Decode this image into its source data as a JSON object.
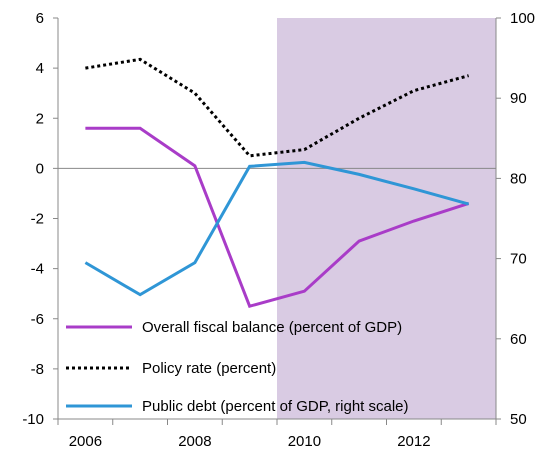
{
  "chart_data": {
    "type": "line",
    "x": [
      2006,
      2007,
      2008,
      2009,
      2010,
      2011,
      2012,
      2013
    ],
    "x_ticks": [
      "2006",
      "2008",
      "2010",
      "2012"
    ],
    "xlim": [
      2005.5,
      2013.5
    ],
    "shaded_region": {
      "from": "2009.5",
      "to": "2013.5",
      "color": "#d9cbe3"
    },
    "left_axis": {
      "ylim": [
        -10,
        6
      ],
      "ticks": [
        "-10",
        "-8",
        "-6",
        "-4",
        "-2",
        "0",
        "2",
        "4",
        "6"
      ]
    },
    "right_axis": {
      "ylim": [
        50,
        100
      ],
      "ticks": [
        "50",
        "60",
        "70",
        "80",
        "90",
        "100"
      ]
    },
    "grid": false,
    "legend_position": "bottom-left",
    "series": [
      {
        "name": "Overall fiscal balance (percent of GDP)",
        "axis": "left",
        "color": "#a93cc8",
        "style": "solid",
        "values": [
          1.6,
          1.6,
          0.1,
          -5.5,
          -4.9,
          -2.9,
          -2.1,
          -1.4
        ]
      },
      {
        "name": "Policy rate (percent)",
        "axis": "left",
        "color": "#000000",
        "style": "dotted",
        "values": [
          4.0,
          4.35,
          3.0,
          0.5,
          0.75,
          2.0,
          3.1,
          3.7
        ]
      },
      {
        "name": "Public debt (percent of GDP, right scale)",
        "axis": "right",
        "color": "#2f96d6",
        "style": "solid",
        "values": [
          69.5,
          65.5,
          69.5,
          81.5,
          82.0,
          80.5,
          78.7,
          76.8
        ]
      }
    ]
  }
}
